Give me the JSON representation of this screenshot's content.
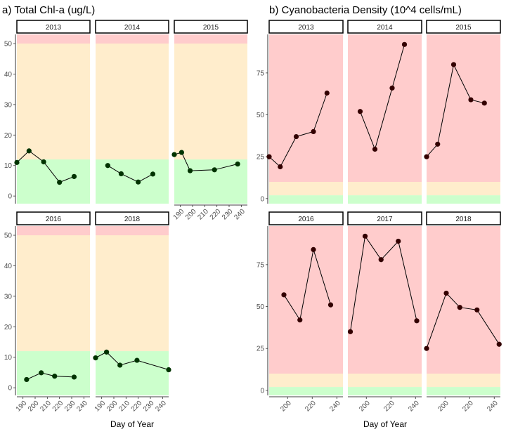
{
  "colors": {
    "good": "#ccffcc",
    "moderate": "#ffedcc",
    "bad": "#ffcccc",
    "line": "#000000",
    "point_a": "#003300",
    "point_b": "#330000"
  },
  "chart_data": [
    {
      "type": "line",
      "title": "a) Total Chl-a (ug/L)",
      "xlabel": "Day of Year",
      "ylabel": "",
      "xlim": [
        185,
        245
      ],
      "ylim": [
        -2.5,
        53
      ],
      "yticks": [
        0,
        10,
        20,
        30,
        40,
        50
      ],
      "xticks": [
        190,
        200,
        210,
        220,
        230,
        240
      ],
      "bands": [
        {
          "from": -2.5,
          "to": 12,
          "color": "good"
        },
        {
          "from": 12,
          "to": 50,
          "color": "moderate"
        },
        {
          "from": 50,
          "to": 53,
          "color": "bad"
        }
      ],
      "panels": [
        {
          "label": "2013",
          "x": [
            185,
            195,
            207,
            220,
            232
          ],
          "y": [
            11,
            14.8,
            11.2,
            4.5,
            6.4
          ]
        },
        {
          "label": "2014",
          "x": [
            195,
            206,
            220,
            232
          ],
          "y": [
            10,
            7.3,
            4.6,
            7.2
          ]
        },
        {
          "label": "2015",
          "x": [
            185,
            191,
            198,
            218,
            237
          ],
          "y": [
            13.6,
            14.3,
            8.3,
            8.6,
            10.5
          ]
        },
        {
          "label": "2016",
          "x": [
            193,
            205,
            216,
            232
          ],
          "y": [
            2.7,
            4.9,
            3.8,
            3.5
          ]
        },
        {
          "label": "2018",
          "x": [
            185,
            194,
            205,
            219,
            245
          ],
          "y": [
            9.8,
            11.7,
            7.4,
            9,
            5.9
          ]
        }
      ]
    },
    {
      "type": "line",
      "title": "b) Cyanobacteria Density (10^4 cells/mL)",
      "xlabel": "Day of Year",
      "ylabel": "",
      "xlim": [
        185,
        245
      ],
      "ylim": [
        -3,
        98
      ],
      "yticks": [
        0,
        25,
        50,
        75
      ],
      "xticks": [
        200,
        220,
        240
      ],
      "bands": [
        {
          "from": -3,
          "to": 2,
          "color": "good"
        },
        {
          "from": 2,
          "to": 10,
          "color": "moderate"
        },
        {
          "from": 10,
          "to": 98,
          "color": "bad"
        }
      ],
      "panels": [
        {
          "label": "2013",
          "x": [
            185,
            194,
            207,
            221,
            232
          ],
          "y": [
            25,
            19,
            37,
            40,
            63
          ]
        },
        {
          "label": "2014",
          "x": [
            195,
            207,
            221,
            231
          ],
          "y": [
            52,
            29.5,
            66,
            92
          ]
        },
        {
          "label": "2015",
          "x": [
            185,
            194,
            207,
            221,
            232
          ],
          "y": [
            25,
            32.5,
            80,
            59,
            57
          ]
        },
        {
          "label": "2016",
          "x": [
            197,
            210,
            221,
            235
          ],
          "y": [
            57,
            42,
            84,
            51
          ]
        },
        {
          "label": "2017",
          "x": [
            187,
            199,
            212,
            226,
            241
          ],
          "y": [
            35,
            92,
            78,
            89,
            41.5
          ]
        },
        {
          "label": "2018",
          "x": [
            185,
            201,
            212,
            226,
            244
          ],
          "y": [
            25,
            58,
            49.5,
            48,
            27.5
          ]
        }
      ]
    }
  ]
}
